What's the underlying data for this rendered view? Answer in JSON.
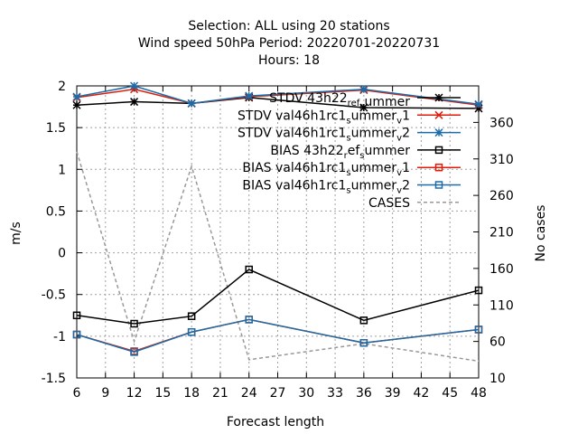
{
  "chart_data": {
    "type": "line",
    "title_lines": [
      "Selection: ALL using    20 stations",
      "Wind speed 50hPa   Period: 20220701-20220731",
      "Hours:  18"
    ],
    "xlabel": "Forecast length",
    "ylabel": "m/s",
    "y2label": "No cases",
    "xlim": [
      6,
      48
    ],
    "ylim": [
      -1.5,
      2
    ],
    "y2lim": [
      10,
      410
    ],
    "x_ticks": [
      "6",
      "9",
      "12",
      "15",
      "18",
      "21",
      "24",
      "27",
      "30",
      "33",
      "36",
      "39",
      "42",
      "45",
      "48"
    ],
    "y_ticks": [
      "-1.5",
      "-1",
      "-0.5",
      "0",
      "0.5",
      "1",
      "1.5",
      "2"
    ],
    "y2_ticks": [
      "10",
      "60",
      "110",
      "160",
      "210",
      "260",
      "310",
      "360"
    ],
    "grid": true,
    "legend_position": "top-right",
    "x": [
      6,
      12,
      18,
      24,
      36,
      48
    ],
    "series": [
      {
        "name": "STDV 43h22_ref_summer",
        "label_parts": [
          [
            "STDV 43h22",
            ""
          ],
          [
            "ref",
            "sub"
          ],
          [
            "",
            ""
          ],
          [
            "s",
            "sub"
          ],
          [
            "ummer",
            ""
          ]
        ],
        "color": "#000000",
        "marker": "star",
        "axis": "y",
        "values": [
          1.77,
          1.81,
          1.79,
          1.86,
          1.74,
          1.73
        ]
      },
      {
        "name": "STDV val46h1rc1_summer_v1",
        "label_parts": [
          [
            "STDV val46h1rc1",
            ""
          ],
          [
            "s",
            "sub"
          ],
          [
            "ummer",
            ""
          ],
          [
            "v",
            "sub"
          ],
          [
            "1",
            ""
          ]
        ],
        "color": "#dd1e0a",
        "marker": "x",
        "axis": "y",
        "values": [
          1.86,
          1.96,
          1.79,
          1.87,
          1.95,
          1.77
        ]
      },
      {
        "name": "STDV val46h1rc1_summer_v2",
        "label_parts": [
          [
            "STDV val46h1rc1",
            ""
          ],
          [
            "s",
            "sub"
          ],
          [
            "ummer",
            ""
          ],
          [
            "v",
            "sub"
          ],
          [
            "2",
            ""
          ]
        ],
        "color": "#1b6ca8",
        "marker": "star",
        "axis": "y",
        "values": [
          1.87,
          2.0,
          1.79,
          1.88,
          1.96,
          1.78
        ]
      },
      {
        "name": "BIAS 43h22_ref_summer",
        "label_parts": [
          [
            "BIAS 43h22",
            ""
          ],
          [
            "r",
            "sub"
          ],
          [
            "ef",
            ""
          ],
          [
            "s",
            "sub"
          ],
          [
            "ummer",
            ""
          ]
        ],
        "color": "#000000",
        "marker": "square",
        "axis": "y",
        "values": [
          -0.75,
          -0.85,
          -0.76,
          -0.2,
          -0.81,
          -0.45
        ]
      },
      {
        "name": "BIAS val46h1rc1_summer_v1",
        "label_parts": [
          [
            "BIAS val46h1rc1",
            ""
          ],
          [
            "s",
            "sub"
          ],
          [
            "ummer",
            ""
          ],
          [
            "v",
            "sub"
          ],
          [
            "1",
            ""
          ]
        ],
        "color": "#dd1e0a",
        "marker": "square",
        "axis": "y",
        "values": [
          -0.98,
          -1.18,
          -0.95,
          -0.8,
          -1.08,
          -0.92
        ]
      },
      {
        "name": "BIAS val46h1rc1_summer_v2",
        "label_parts": [
          [
            "BIAS val46h1rc1",
            ""
          ],
          [
            "s",
            "sub"
          ],
          [
            "ummer",
            ""
          ],
          [
            "v",
            "sub"
          ],
          [
            "2",
            ""
          ]
        ],
        "color": "#1b6ca8",
        "marker": "square",
        "axis": "y",
        "values": [
          -0.98,
          -1.19,
          -0.95,
          -0.8,
          -1.08,
          -0.92
        ]
      },
      {
        "name": "CASES",
        "label_parts": [
          [
            "CASES",
            ""
          ]
        ],
        "color": "#999999",
        "marker": "none",
        "dashed": true,
        "axis": "y2",
        "values": [
          320,
          60,
          300,
          35,
          57,
          33
        ]
      }
    ]
  }
}
